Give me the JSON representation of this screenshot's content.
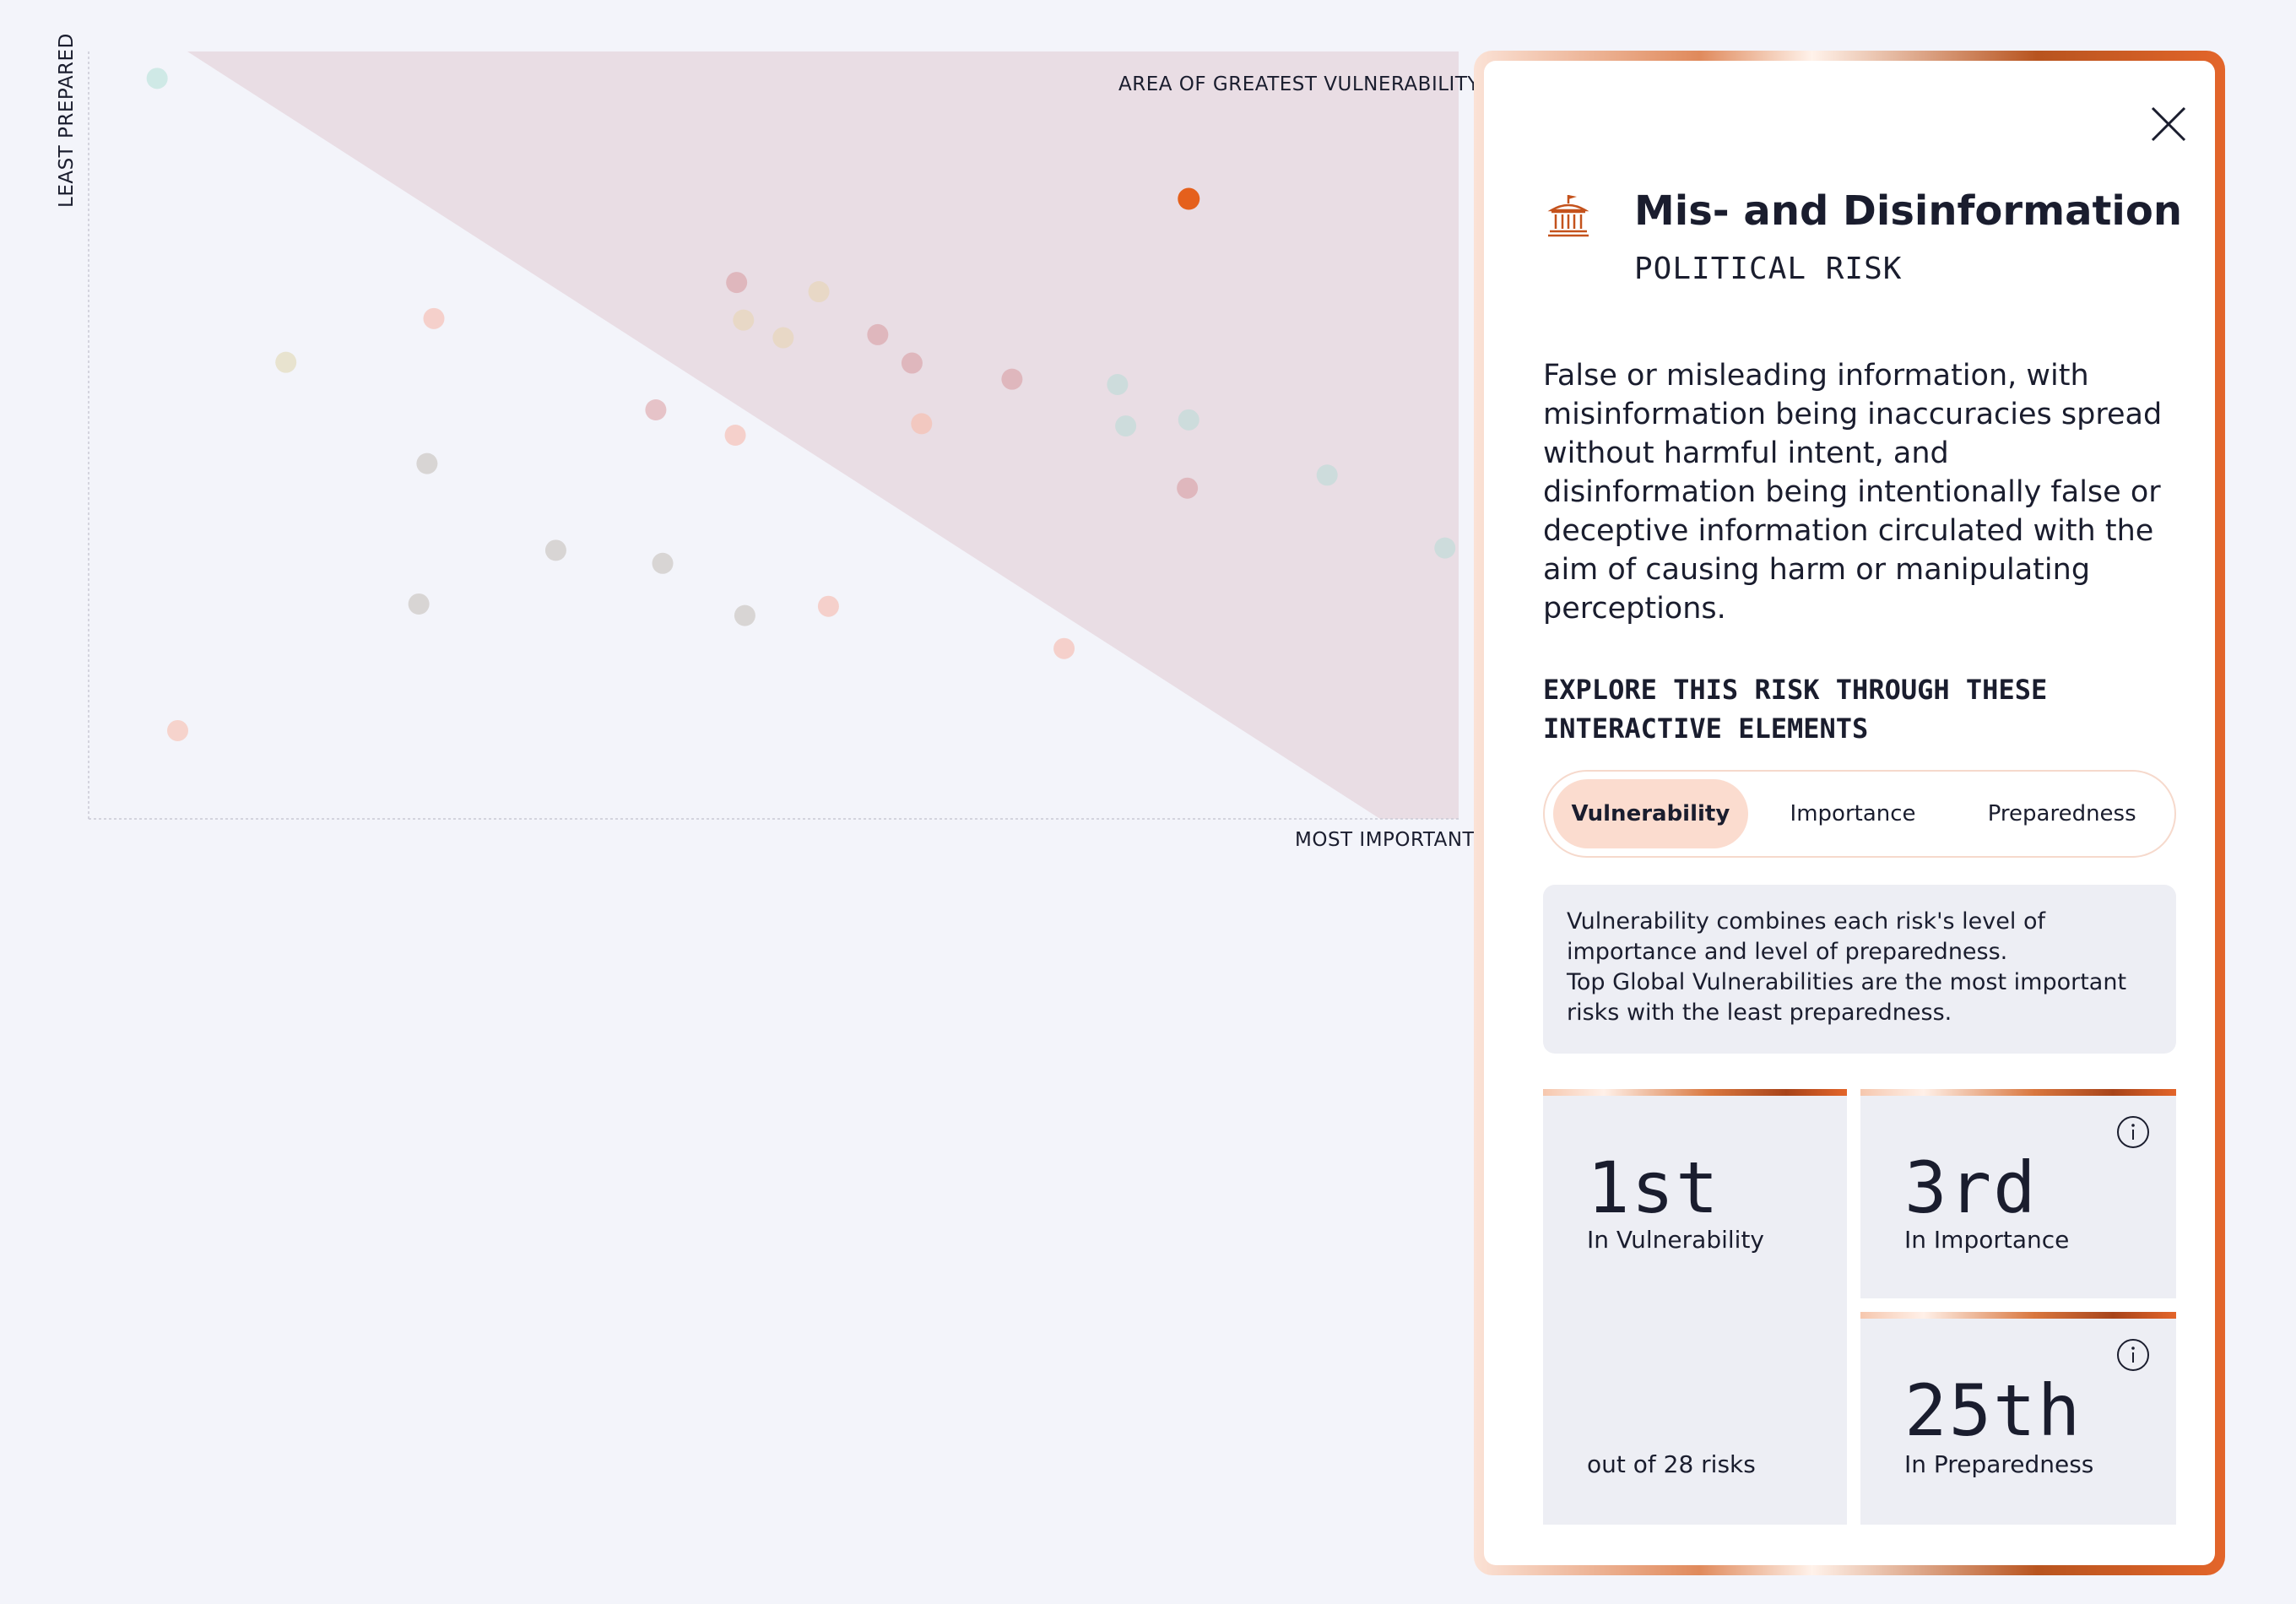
{
  "chart": {
    "y_axis_label": "LEAST PREPARED",
    "x_axis_label": "MOST IMPORTANT",
    "zone_label": "AREA OF GREATEST VULNERABILITY"
  },
  "chart_data": {
    "type": "scatter",
    "xlabel": "MOST IMPORTANT",
    "ylabel": "LEAST PREPARED",
    "annotations": [
      "AREA OF GREATEST VULNERABILITY"
    ],
    "xlim": [
      0,
      100
    ],
    "ylim": [
      0,
      100
    ],
    "highlight_color": "#e5601c",
    "points": [
      {
        "x": 5.0,
        "y": 96.5,
        "color": "#cfe9e6"
      },
      {
        "x": 6.5,
        "y": 11.5,
        "color": "#f6d3cc"
      },
      {
        "x": 14.4,
        "y": 59.5,
        "color": "#e8e3cf"
      },
      {
        "x": 25.2,
        "y": 65.2,
        "color": "#f5d0cb"
      },
      {
        "x": 24.7,
        "y": 46.3,
        "color": "#d8d5d4"
      },
      {
        "x": 24.1,
        "y": 28.0,
        "color": "#d8d5d4"
      },
      {
        "x": 34.1,
        "y": 35.0,
        "color": "#d8d5d4"
      },
      {
        "x": 41.9,
        "y": 33.3,
        "color": "#d8d5d4"
      },
      {
        "x": 41.4,
        "y": 53.3,
        "color": "#e6c3c8"
      },
      {
        "x": 47.3,
        "y": 69.9,
        "color": "#dfb7bd"
      },
      {
        "x": 47.8,
        "y": 65.0,
        "color": "#e8d8c6"
      },
      {
        "x": 47.2,
        "y": 50.0,
        "color": "#f5d0cb"
      },
      {
        "x": 53.3,
        "y": 68.7,
        "color": "#e8d8c6"
      },
      {
        "x": 50.7,
        "y": 62.7,
        "color": "#e8d8c6"
      },
      {
        "x": 47.9,
        "y": 26.5,
        "color": "#d8d5d4"
      },
      {
        "x": 54.0,
        "y": 27.7,
        "color": "#f5d0cb"
      },
      {
        "x": 57.6,
        "y": 63.1,
        "color": "#dfb7bd"
      },
      {
        "x": 60.1,
        "y": 59.4,
        "color": "#dfb7bd"
      },
      {
        "x": 60.8,
        "y": 51.5,
        "color": "#f2c8c0"
      },
      {
        "x": 67.4,
        "y": 57.3,
        "color": "#dfb7bd"
      },
      {
        "x": 71.2,
        "y": 22.2,
        "color": "#f5d0cb"
      },
      {
        "x": 75.1,
        "y": 56.6,
        "color": "#cddcdc"
      },
      {
        "x": 75.7,
        "y": 51.2,
        "color": "#cddcdc"
      },
      {
        "x": 80.3,
        "y": 52.0,
        "color": "#cddcdc"
      },
      {
        "x": 80.2,
        "y": 43.1,
        "color": "#dfb7bd"
      },
      {
        "x": 90.4,
        "y": 44.8,
        "color": "#cddcdc"
      },
      {
        "x": 99.0,
        "y": 35.3,
        "color": "#cddcdc"
      },
      {
        "x": 80.3,
        "y": 80.8,
        "color": "#e5601c",
        "highlighted": true
      }
    ]
  },
  "panel": {
    "title": "Mis- and Disinformation",
    "category": "POLITICAL RISK",
    "icon": "government-building-icon",
    "description": "False or misleading information, with misinformation being inaccuracies spread without harmful intent, and disinformation being intentionally false or deceptive information circulated with the aim of causing harm or manipulating perceptions.",
    "explore_heading": "EXPLORE THIS RISK THROUGH THESE INTERACTIVE ELEMENTS",
    "tabs": {
      "vulnerability": "Vulnerability",
      "importance": "Importance",
      "preparedness": "Preparedness",
      "active": "vulnerability"
    },
    "info_line1": "Vulnerability combines each risk's level of importance and level of preparedness.",
    "info_line2": "Top Global Vulnerabilities are the most important risks with the least preparedness.",
    "stats": {
      "vulnerability_rank": "1st",
      "vulnerability_label": "In Vulnerability",
      "out_of": "out of 28 risks",
      "importance_rank": "3rd",
      "importance_label": "In Importance",
      "preparedness_rank": "25th",
      "preparedness_label": "In Preparedness"
    },
    "accent_color": "#c4521c"
  }
}
